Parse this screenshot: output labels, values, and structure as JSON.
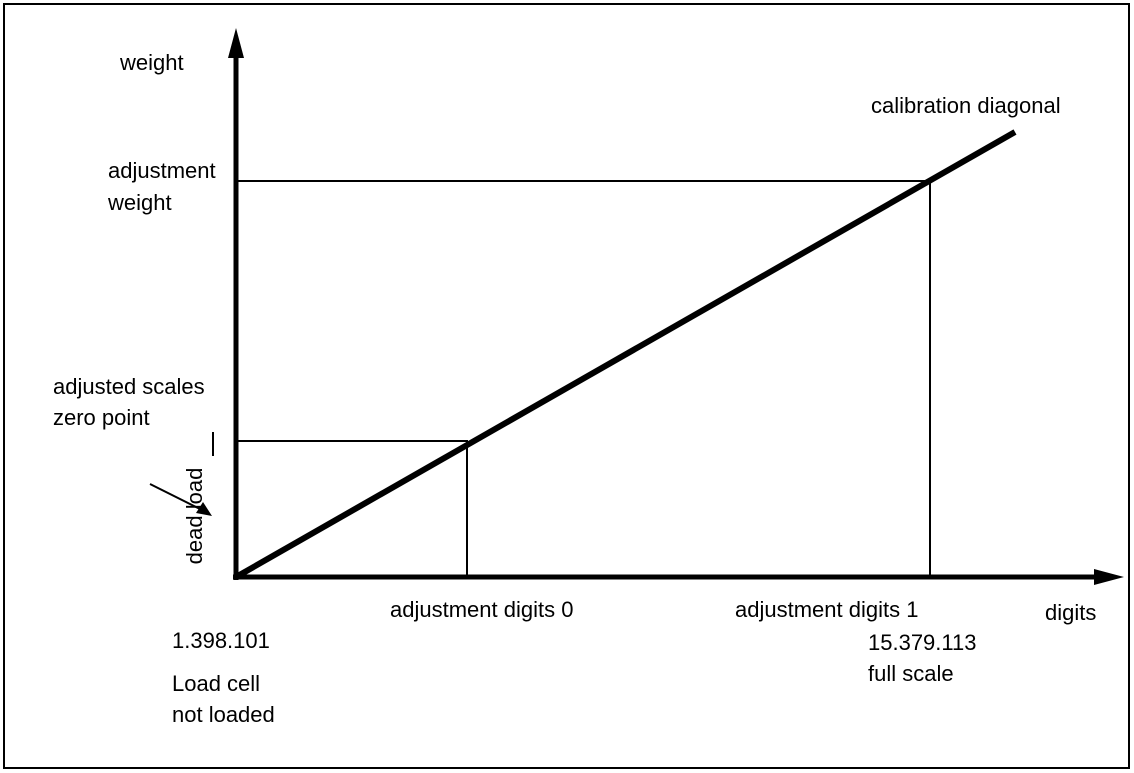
{
  "labels": {
    "y_axis": "weight",
    "x_axis": "digits",
    "diagonal": "calibration diagonal",
    "adjustment_weight": [
      "adjustment",
      "weight"
    ],
    "zero_point": [
      "adjusted scales",
      "zero point"
    ],
    "dead_load": "dead load",
    "digits_0": "adjustment digits 0",
    "digits_1": "adjustment digits 1",
    "origin_value": "1.398.101",
    "origin_note": [
      "Load cell",
      "not loaded"
    ],
    "full_scale_value": "15.379.113",
    "full_scale_note": "full scale"
  }
}
